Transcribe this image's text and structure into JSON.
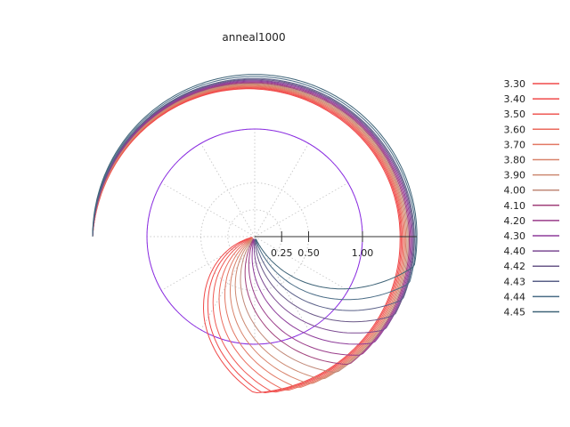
{
  "chart_data": {
    "type": "line",
    "coordinate_system": "polar",
    "title": "anneal1000",
    "radial_axis": {
      "tick_labels": [
        "0.25",
        "0.50",
        "1.00"
      ],
      "tick_values": [
        0.25,
        0.5,
        1.0
      ],
      "range": [
        0,
        1.5
      ],
      "direction": "0° to the right, angle increasing clockwise"
    },
    "grid": true,
    "legend_position": "right",
    "reference_circle": {
      "radius": 1.0,
      "color": "#8a2be2"
    },
    "spiral": {
      "angle_range_deg": [
        0,
        540
      ],
      "radial_wind": "counterclockwise from the outer start"
    },
    "series": [
      {
        "name": "3.30",
        "color": "#f04a4a",
        "end_angle_deg": 28,
        "outer_radius": 1.45
      },
      {
        "name": "3.40",
        "color": "#f04a4a",
        "end_angle_deg": 32,
        "outer_radius": 1.46
      },
      {
        "name": "3.50",
        "color": "#ef5a55",
        "end_angle_deg": 37,
        "outer_radius": 1.47
      },
      {
        "name": "3.60",
        "color": "#eb6a5c",
        "end_angle_deg": 43,
        "outer_radius": 1.48
      },
      {
        "name": "3.70",
        "color": "#e27864",
        "end_angle_deg": 49,
        "outer_radius": 1.49
      },
      {
        "name": "3.80",
        "color": "#d8836b",
        "end_angle_deg": 55,
        "outer_radius": 1.5
      },
      {
        "name": "3.90",
        "color": "#cc8a72",
        "end_angle_deg": 61,
        "outer_radius": 1.51
      },
      {
        "name": "4.00",
        "color": "#c08878",
        "end_angle_deg": 68,
        "outer_radius": 1.52
      },
      {
        "name": "4.10",
        "color": "#a0407a",
        "end_angle_deg": 75,
        "outer_radius": 1.53
      },
      {
        "name": "4.20",
        "color": "#9a3c8a",
        "end_angle_deg": 82,
        "outer_radius": 1.54
      },
      {
        "name": "4.30",
        "color": "#8e3c9a",
        "end_angle_deg": 90,
        "outer_radius": 1.55
      },
      {
        "name": "4.40",
        "color": "#7c4a92",
        "end_angle_deg": 98,
        "outer_radius": 1.56
      },
      {
        "name": "4.42",
        "color": "#6a5888",
        "end_angle_deg": 106,
        "outer_radius": 1.57
      },
      {
        "name": "4.43",
        "color": "#5a6088",
        "end_angle_deg": 114,
        "outer_radius": 1.58
      },
      {
        "name": "4.44",
        "color": "#4a6c86",
        "end_angle_deg": 122,
        "outer_radius": 1.6
      },
      {
        "name": "4.45",
        "color": "#3f6478",
        "end_angle_deg": 130,
        "outer_radius": 1.62
      }
    ]
  }
}
